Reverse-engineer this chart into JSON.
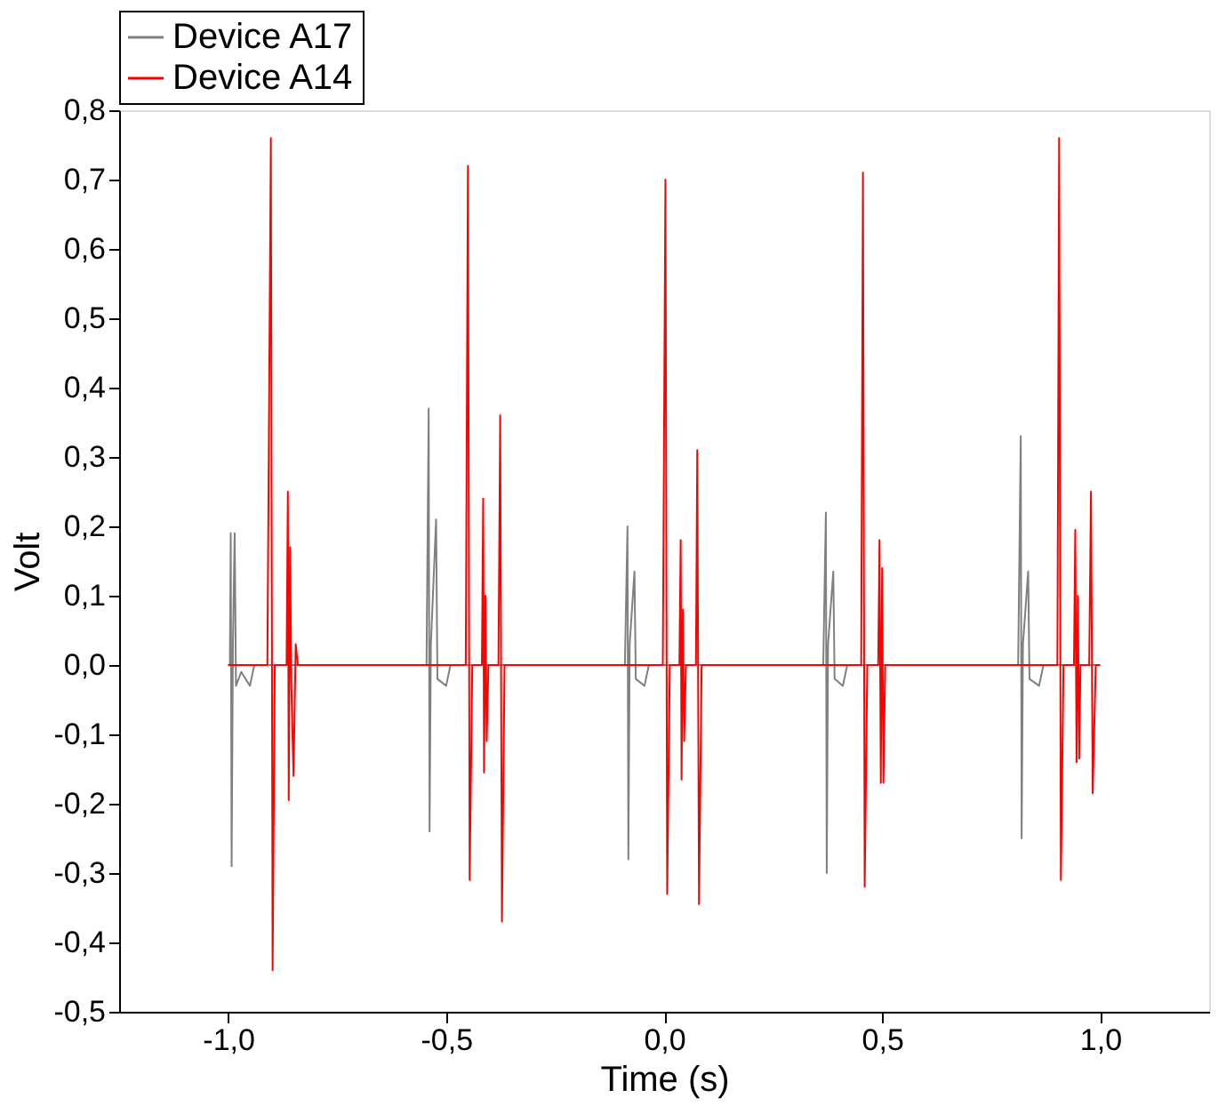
{
  "chart_data": {
    "type": "line",
    "xlabel": "Time (s)",
    "ylabel": "Volt",
    "xlim": [
      -1.25,
      1.25
    ],
    "ylim": [
      -0.5,
      0.8
    ],
    "xticks": [
      {
        "value": -1.0,
        "label": "-1,0"
      },
      {
        "value": -0.5,
        "label": "-0,5"
      },
      {
        "value": 0.0,
        "label": "0,0"
      },
      {
        "value": 0.5,
        "label": "0,5"
      },
      {
        "value": 1.0,
        "label": "1,0"
      }
    ],
    "yticks": [
      {
        "value": -0.5,
        "label": "-0,5"
      },
      {
        "value": -0.4,
        "label": "-0,4"
      },
      {
        "value": -0.3,
        "label": "-0,3"
      },
      {
        "value": -0.2,
        "label": "-0,2"
      },
      {
        "value": -0.1,
        "label": "-0,1"
      },
      {
        "value": 0.0,
        "label": "0,0"
      },
      {
        "value": 0.1,
        "label": "0,1"
      },
      {
        "value": 0.2,
        "label": "0,2"
      },
      {
        "value": 0.3,
        "label": "0,3"
      },
      {
        "value": 0.4,
        "label": "0,4"
      },
      {
        "value": 0.5,
        "label": "0,5"
      },
      {
        "value": 0.6,
        "label": "0,6"
      },
      {
        "value": 0.7,
        "label": "0,7"
      },
      {
        "value": 0.8,
        "label": "0,8"
      }
    ],
    "grid": false,
    "legend": "top",
    "marker": "none",
    "line_style": "solid",
    "series": [
      {
        "name": "Device A17",
        "color": "#808080",
        "x": [
          -1.0,
          -0.996,
          -0.994,
          -0.992,
          -0.989,
          -0.985,
          -0.982,
          -0.97,
          -0.95,
          -0.94,
          -0.545,
          -0.54,
          -0.538,
          -0.535,
          -0.523,
          -0.52,
          -0.5,
          -0.49,
          -0.09,
          -0.084,
          -0.082,
          -0.079,
          -0.068,
          -0.065,
          -0.045,
          -0.035,
          0.365,
          0.371,
          0.373,
          0.376,
          0.388,
          0.391,
          0.41,
          0.42,
          0.812,
          0.818,
          0.82,
          0.823,
          0.835,
          0.838,
          0.86,
          0.87,
          1.0
        ],
        "values": [
          0,
          0,
          0.19,
          -0.29,
          0.03,
          0.19,
          -0.03,
          -0.01,
          -0.03,
          0,
          0,
          0.37,
          -0.24,
          0.03,
          0.21,
          -0.02,
          -0.03,
          0,
          0,
          0.2,
          -0.28,
          0.03,
          0.135,
          -0.02,
          -0.03,
          0,
          0,
          0.22,
          -0.3,
          0.03,
          0.135,
          -0.02,
          -0.03,
          0,
          0,
          0.33,
          -0.25,
          0.03,
          0.135,
          -0.02,
          -0.03,
          0,
          0
        ]
      },
      {
        "name": "Device A14",
        "color": "#ff0000",
        "x": [
          -1.0,
          -0.91,
          -0.902,
          -0.898,
          -0.893,
          -0.866,
          -0.863,
          -0.861,
          -0.858,
          -0.855,
          -0.85,
          -0.845,
          -0.84,
          -0.455,
          -0.45,
          -0.446,
          -0.44,
          -0.418,
          -0.415,
          -0.413,
          -0.41,
          -0.407,
          -0.403,
          -0.38,
          -0.376,
          -0.372,
          -0.366,
          -0.003,
          0.003,
          0.007,
          0.013,
          0.035,
          0.038,
          0.04,
          0.043,
          0.046,
          0.05,
          0.073,
          0.076,
          0.08,
          0.086,
          0.452,
          0.456,
          0.46,
          0.466,
          0.491,
          0.494,
          0.497,
          0.5,
          0.503,
          0.507,
          0.902,
          0.906,
          0.91,
          0.916,
          0.94,
          0.943,
          0.946,
          0.949,
          0.952,
          0.955,
          0.975,
          0.979,
          0.983,
          0.99,
          1.0
        ],
        "values": [
          0,
          0,
          0.76,
          -0.44,
          0,
          0,
          0.25,
          -0.195,
          0.17,
          -0.03,
          -0.16,
          0.03,
          0,
          0,
          0.72,
          -0.31,
          0,
          0,
          0.24,
          -0.155,
          0.1,
          -0.11,
          0,
          0,
          0.36,
          -0.37,
          0,
          0,
          0.7,
          -0.33,
          0,
          0,
          0.18,
          -0.165,
          0.08,
          -0.11,
          0,
          0,
          0.31,
          -0.345,
          0,
          0,
          0.71,
          -0.32,
          0,
          0,
          0.18,
          -0.17,
          0.14,
          -0.17,
          0,
          0,
          0.76,
          -0.31,
          0,
          0,
          0.195,
          -0.14,
          0.1,
          -0.135,
          0,
          0,
          0.25,
          -0.185,
          0,
          0
        ]
      }
    ]
  }
}
